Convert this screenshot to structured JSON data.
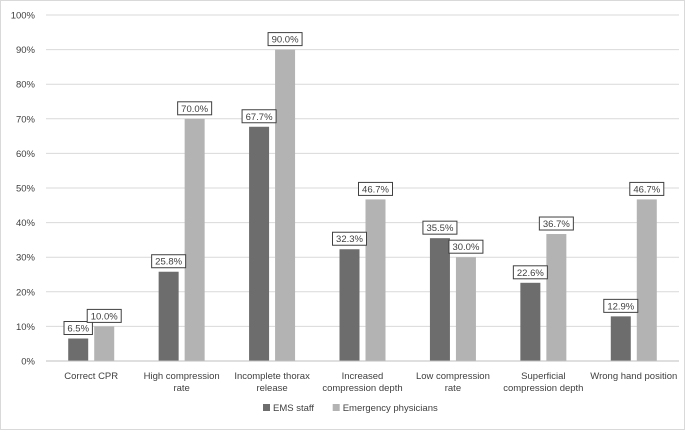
{
  "chart_data": {
    "type": "bar",
    "categories": [
      "Correct CPR",
      "High compression rate",
      "Incomplete thorax release",
      "Increased compression depth",
      "Low compression rate",
      "Superficial compression depth",
      "Wrong hand position"
    ],
    "category_lines": [
      [
        "Correct CPR"
      ],
      [
        "High compression",
        "rate"
      ],
      [
        "Incomplete thorax",
        "release"
      ],
      [
        "Increased",
        "compression depth"
      ],
      [
        "Low compression",
        "rate"
      ],
      [
        "Superficial",
        "compression depth"
      ],
      [
        "Wrong hand position"
      ]
    ],
    "series": [
      {
        "name": "EMS staff",
        "values": [
          6.5,
          25.8,
          67.7,
          32.3,
          35.5,
          22.6,
          12.9
        ],
        "labels": [
          "6.5%",
          "25.8%",
          "67.7%",
          "32.3%",
          "35.5%",
          "22.6%",
          "12.9%"
        ]
      },
      {
        "name": "Emergency physicians",
        "values": [
          10.0,
          70.0,
          90.0,
          46.7,
          30.0,
          36.7,
          46.7
        ],
        "labels": [
          "10.0%",
          "70.0%",
          "90.0%",
          "46.7%",
          "30.0%",
          "36.7%",
          "46.7%"
        ]
      }
    ],
    "yticks": [
      "0%",
      "10%",
      "20%",
      "30%",
      "40%",
      "50%",
      "60%",
      "70%",
      "80%",
      "90%",
      "100%"
    ],
    "ylim": [
      0,
      100
    ],
    "grid": true,
    "legend_position": "bottom",
    "colors": [
      "#6d6d6d",
      "#b3b3b3"
    ]
  }
}
